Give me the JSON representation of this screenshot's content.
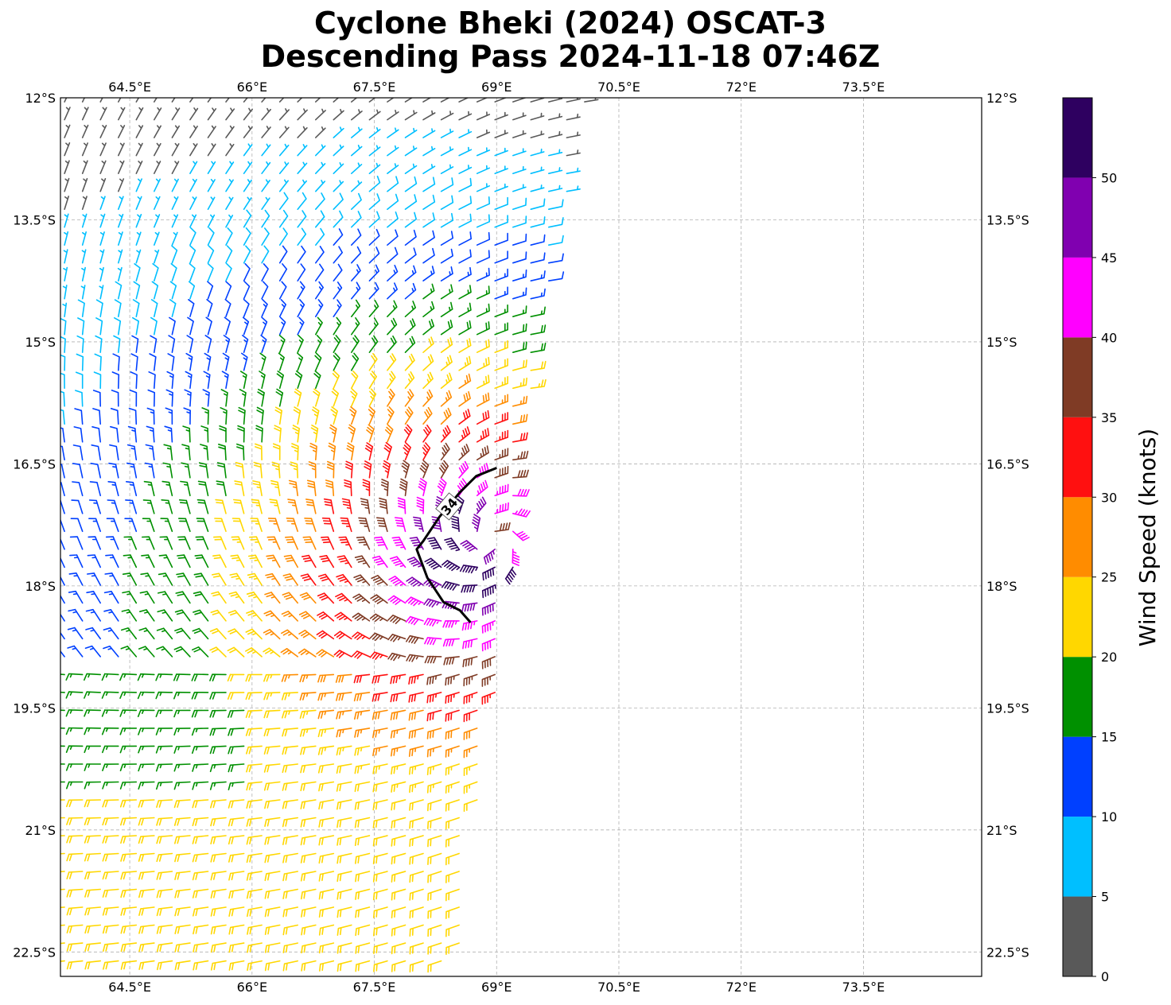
{
  "title_line1": "Cyclone Bheki (2024) OSCAT-3",
  "title_line2": "Descending Pass 2024-11-18 07:46Z",
  "map": {
    "lon_range": [
      63.65,
      74.95
    ],
    "lat_range": [
      -22.8,
      -12.0
    ],
    "lon_ticks": [
      {
        "value": 64.5,
        "label": "64.5°E"
      },
      {
        "value": 66.0,
        "label": "66°E"
      },
      {
        "value": 67.5,
        "label": "67.5°E"
      },
      {
        "value": 69.0,
        "label": "69°E"
      },
      {
        "value": 70.5,
        "label": "70.5°E"
      },
      {
        "value": 72.0,
        "label": "72°E"
      },
      {
        "value": 73.5,
        "label": "73.5°E"
      }
    ],
    "lat_ticks": [
      {
        "value": -12.0,
        "label": "12°S"
      },
      {
        "value": -13.5,
        "label": "13.5°S"
      },
      {
        "value": -15.0,
        "label": "15°S"
      },
      {
        "value": -16.5,
        "label": "16.5°S"
      },
      {
        "value": -18.0,
        "label": "18°S"
      },
      {
        "value": -19.5,
        "label": "19.5°S"
      },
      {
        "value": -21.0,
        "label": "21°S"
      },
      {
        "value": -22.5,
        "label": "22.5°S"
      }
    ],
    "gridlines": true,
    "swath_east_edge": [
      [
        -12.0,
        70.1
      ],
      [
        -14.5,
        69.6
      ],
      [
        -16.5,
        69.3
      ],
      [
        -18.5,
        69.15
      ],
      [
        -20.5,
        68.8
      ],
      [
        -22.8,
        68.5
      ]
    ],
    "cyclone_center": [
      -17.45,
      68.95
    ],
    "contour_34kt": {
      "label": "34",
      "points": [
        [
          -16.55,
          69.0
        ],
        [
          -16.65,
          68.75
        ],
        [
          -16.85,
          68.55
        ],
        [
          -17.15,
          68.3
        ],
        [
          -17.45,
          68.1
        ],
        [
          -17.55,
          68.02
        ],
        [
          -17.9,
          68.15
        ],
        [
          -18.2,
          68.35
        ],
        [
          -18.3,
          68.55
        ],
        [
          -18.45,
          68.68
        ]
      ]
    }
  },
  "colorbar": {
    "label": "Wind Speed (knots)",
    "bins": [
      {
        "from": 0,
        "to": 5,
        "color": "#595959"
      },
      {
        "from": 5,
        "to": 10,
        "color": "#00bfff"
      },
      {
        "from": 10,
        "to": 15,
        "color": "#0040ff"
      },
      {
        "from": 15,
        "to": 20,
        "color": "#009000"
      },
      {
        "from": 20,
        "to": 25,
        "color": "#ffd700"
      },
      {
        "from": 25,
        "to": 30,
        "color": "#ff8c00"
      },
      {
        "from": 30,
        "to": 35,
        "color": "#ff1010"
      },
      {
        "from": 35,
        "to": 40,
        "color": "#7f3b25"
      },
      {
        "from": 40,
        "to": 45,
        "color": "#ff00ff"
      },
      {
        "from": 45,
        "to": 50,
        "color": "#8000b0"
      },
      {
        "from": 50,
        "to": 55,
        "color": "#2e0060"
      }
    ],
    "ticks": [
      "0",
      "5",
      "10",
      "15",
      "20",
      "25",
      "30",
      "35",
      "40",
      "45",
      "50"
    ]
  }
}
